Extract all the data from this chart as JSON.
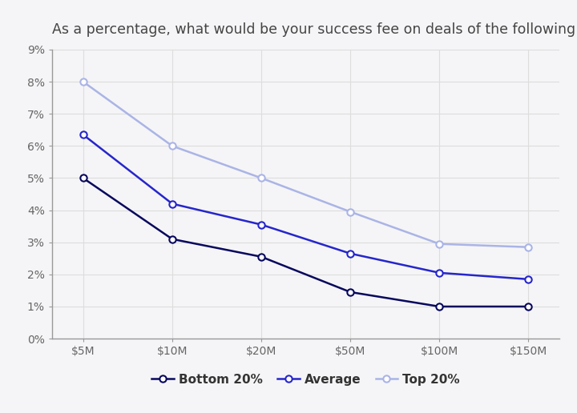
{
  "title": "As a percentage, what would be your success fee on deals of the following sizes?",
  "categories": [
    "$5M",
    "$10M",
    "$20M",
    "$50M",
    "$100M",
    "$150M"
  ],
  "bottom20": [
    5.0,
    3.1,
    2.55,
    1.45,
    1.0,
    1.0
  ],
  "average": [
    6.35,
    4.2,
    3.55,
    2.65,
    2.05,
    1.85
  ],
  "top20": [
    8.0,
    6.0,
    5.0,
    3.95,
    2.95,
    2.85
  ],
  "bottom20_color": "#08085e",
  "average_color": "#2626cc",
  "top20_color": "#aab4e6",
  "ylim": [
    0,
    9
  ],
  "yticks": [
    0,
    1,
    2,
    3,
    4,
    5,
    6,
    7,
    8,
    9
  ],
  "ytick_labels": [
    "0%",
    "1%",
    "2%",
    "3%",
    "4%",
    "5%",
    "6%",
    "7%",
    "8%",
    "9%"
  ],
  "fig_background": "#f5f5f7",
  "plot_background": "#f5f5f7",
  "grid_color": "#dddddd",
  "title_fontsize": 12.5,
  "tick_fontsize": 10,
  "legend_fontsize": 11,
  "title_color": "#444444",
  "tick_color": "#666666"
}
